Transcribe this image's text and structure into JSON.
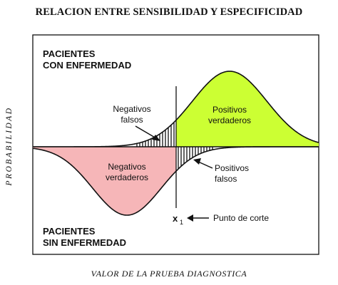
{
  "title": "RELACION ENTRE SENSIBILIDAD Y ESPECIFICIDAD",
  "y_axis_label": "PROBABILIDAD",
  "x_axis_label": "VALOR DE LA PRUEBA DIAGNOSTICA",
  "groups": {
    "diseased": [
      "PACIENTES",
      "CON ENFERMEDAD"
    ],
    "healthy": [
      "PACIENTES",
      "SIN ENFERMEDAD"
    ]
  },
  "regions": {
    "true_positive": [
      "Positivos",
      "verdaderos"
    ],
    "false_negative": [
      "Negativos",
      "falsos"
    ],
    "true_negative": [
      "Negativos",
      "verdaderos"
    ],
    "false_positive": [
      "Positivos",
      "falsos"
    ]
  },
  "cutoff": {
    "symbol": "x",
    "subscript": "1",
    "label": "Punto de corte"
  },
  "colors": {
    "true_positive": "#ccff33",
    "true_negative": "#f6b6b8",
    "border": "#111111"
  }
}
